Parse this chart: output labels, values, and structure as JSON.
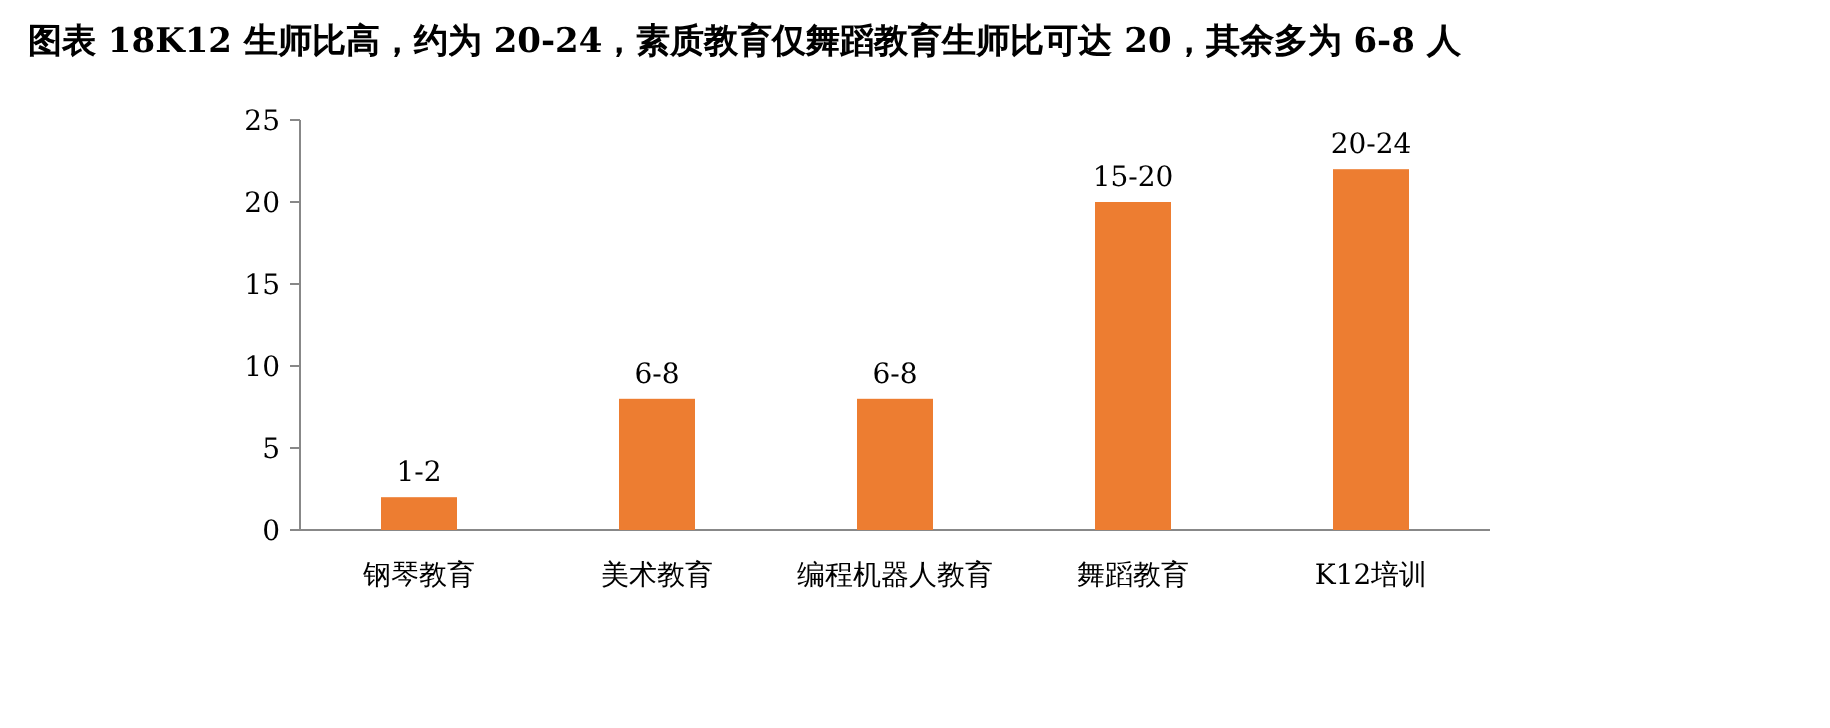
{
  "chart_data": {
    "type": "bar",
    "title": "图表 18K12 生师比高，约为 20-24，素质教育仅舞蹈教育生师比可达 20，其余多为 6-8 人",
    "categories": [
      "钢琴教育",
      "美术教育",
      "编程机器人教育",
      "舞蹈教育",
      "K12培训"
    ],
    "values": [
      2,
      8,
      8,
      20,
      22
    ],
    "value_labels": [
      "1-2",
      "6-8",
      "6-8",
      "15-20",
      "20-24"
    ],
    "color": "#ed7d31",
    "ylim": [
      0,
      25
    ],
    "yticks": [
      0,
      5,
      10,
      15,
      20,
      25
    ]
  }
}
